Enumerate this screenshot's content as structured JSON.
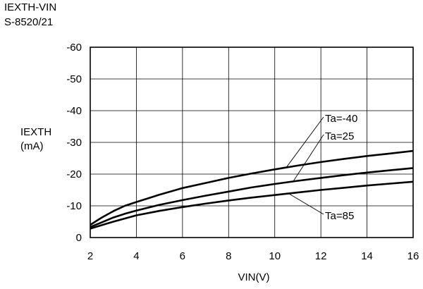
{
  "chart_data": {
    "type": "line",
    "title": "IEXTH-VIN",
    "subtitle": "S-8520/21",
    "xlabel": "VIN(V)",
    "ylabel": "IEXTH",
    "ylabel_unit": "(mA)",
    "xlim": [
      2,
      16
    ],
    "ylim": [
      0,
      -60
    ],
    "xticks": [
      2,
      4,
      6,
      8,
      10,
      12,
      14,
      16
    ],
    "yticks": [
      0,
      -10,
      -20,
      -30,
      -40,
      -50,
      -60
    ],
    "grid": true,
    "series": [
      {
        "name": "Ta=-40",
        "x": [
          2,
          2.5,
          3,
          3.5,
          4,
          5,
          6,
          7,
          8,
          9,
          10,
          11,
          12,
          13,
          14,
          15,
          16
        ],
        "y": [
          -4,
          -6.3,
          -8.3,
          -10,
          -11.2,
          -13.5,
          -15.6,
          -17.2,
          -18.8,
          -20.2,
          -21.5,
          -22.7,
          -23.8,
          -24.8,
          -25.7,
          -26.5,
          -27.3
        ]
      },
      {
        "name": "Ta=25",
        "x": [
          2,
          2.5,
          3,
          3.5,
          4,
          5,
          6,
          7,
          8,
          9,
          10,
          11,
          12,
          13,
          14,
          15,
          16
        ],
        "y": [
          -3.3,
          -4.8,
          -6.3,
          -7.5,
          -8.5,
          -10.3,
          -11.8,
          -13.2,
          -14.5,
          -15.8,
          -16.9,
          -17.9,
          -18.8,
          -19.7,
          -20.5,
          -21.2,
          -21.9
        ]
      },
      {
        "name": "Ta=85",
        "x": [
          2,
          2.5,
          3,
          3.5,
          4,
          5,
          6,
          7,
          8,
          9,
          10,
          11,
          12,
          13,
          14,
          15,
          16
        ],
        "y": [
          -2.8,
          -3.9,
          -5,
          -6,
          -7,
          -8.4,
          -9.6,
          -10.7,
          -11.7,
          -12.6,
          -13.4,
          -14.2,
          -15,
          -15.7,
          -16.4,
          -17,
          -17.6
        ]
      }
    ],
    "annotations": [
      {
        "text": "Ta=-40",
        "series": 0,
        "at_x": 10.5
      },
      {
        "text": "Ta=25",
        "series": 1,
        "at_x": 10.8
      },
      {
        "text": "Ta=85",
        "series": 2,
        "at_x": 10.6
      }
    ]
  }
}
